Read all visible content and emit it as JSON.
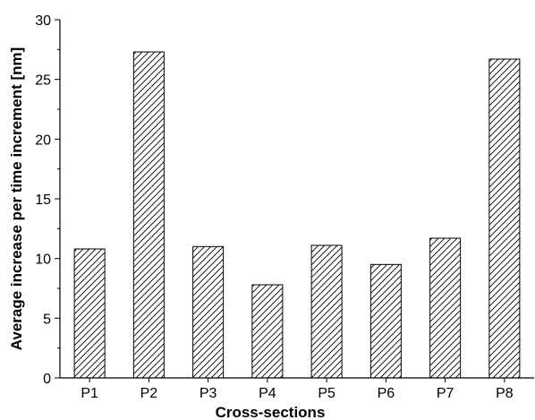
{
  "chart_data": {
    "type": "bar",
    "title": "",
    "xlabel": "Cross-sections",
    "ylabel": "Average increase per time increment [nm]",
    "categories": [
      "P1",
      "P2",
      "P3",
      "P4",
      "P5",
      "P6",
      "P7",
      "P8"
    ],
    "values": [
      10.8,
      27.3,
      11.0,
      7.8,
      11.1,
      9.5,
      11.7,
      26.7
    ],
    "ylim": [
      0,
      30
    ],
    "yticks": [
      0,
      5,
      10,
      15,
      20,
      25,
      30
    ],
    "grid": false,
    "bar_fill": "diagonal-hatch",
    "colors": {
      "bar_stroke": "#000000",
      "hatch": "#000000",
      "background": "#ffffff"
    }
  }
}
